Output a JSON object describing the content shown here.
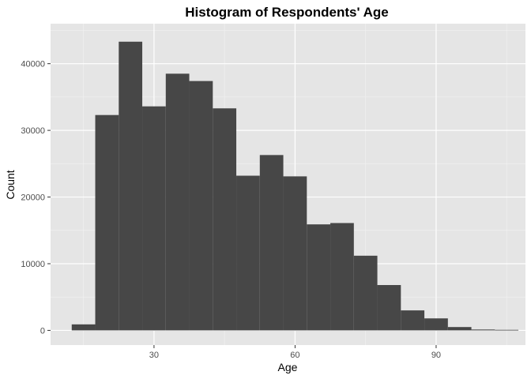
{
  "chart_data": {
    "type": "histogram",
    "title": "Histogram of Respondents' Age",
    "xlabel": "Age",
    "ylabel": "Count",
    "xlim": [
      8,
      109
    ],
    "ylim": [
      -2200,
      46000
    ],
    "x_ticks": [
      30,
      60,
      90
    ],
    "x_tick_labels": [
      "30",
      "60",
      "90"
    ],
    "y_ticks": [
      0,
      10000,
      20000,
      30000,
      40000
    ],
    "y_tick_labels": [
      "0",
      "10000",
      "20000",
      "30000",
      "40000"
    ],
    "grid": true,
    "bar_color": "#474747",
    "panel_background": "#e5e5e5",
    "bins": [
      {
        "x0": 12.5,
        "x1": 17.5,
        "count": 900
      },
      {
        "x0": 17.5,
        "x1": 22.5,
        "count": 32300
      },
      {
        "x0": 22.5,
        "x1": 27.5,
        "count": 43300
      },
      {
        "x0": 27.5,
        "x1": 32.5,
        "count": 33600
      },
      {
        "x0": 32.5,
        "x1": 37.5,
        "count": 38500
      },
      {
        "x0": 37.5,
        "x1": 42.5,
        "count": 37400
      },
      {
        "x0": 42.5,
        "x1": 47.5,
        "count": 33300
      },
      {
        "x0": 47.5,
        "x1": 52.5,
        "count": 23200
      },
      {
        "x0": 52.5,
        "x1": 57.5,
        "count": 26300
      },
      {
        "x0": 57.5,
        "x1": 62.5,
        "count": 23100
      },
      {
        "x0": 62.5,
        "x1": 67.5,
        "count": 15900
      },
      {
        "x0": 67.5,
        "x1": 72.5,
        "count": 16100
      },
      {
        "x0": 72.5,
        "x1": 77.5,
        "count": 11200
      },
      {
        "x0": 77.5,
        "x1": 82.5,
        "count": 6800
      },
      {
        "x0": 82.5,
        "x1": 87.5,
        "count": 3000
      },
      {
        "x0": 87.5,
        "x1": 92.5,
        "count": 1800
      },
      {
        "x0": 92.5,
        "x1": 97.5,
        "count": 500
      },
      {
        "x0": 97.5,
        "x1": 102.5,
        "count": 130
      },
      {
        "x0": 102.5,
        "x1": 107.5,
        "count": 80
      }
    ]
  }
}
